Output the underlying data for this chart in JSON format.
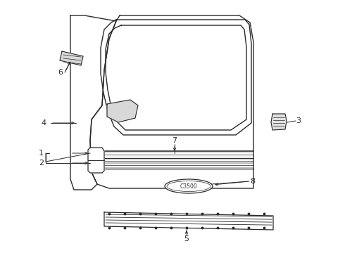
{
  "bg_color": "#ffffff",
  "line_color": "#2a2a2a",
  "label_color": "#111111",
  "font_size": 8,
  "lw_main": 1.0,
  "lw_thick": 1.4
}
